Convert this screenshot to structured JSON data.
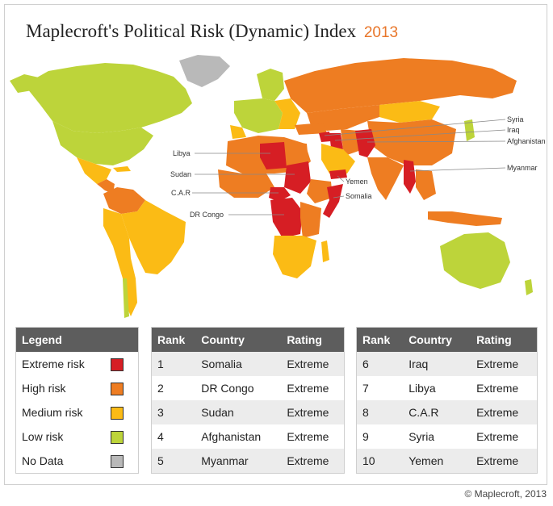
{
  "title": {
    "main": "Maplecroft's Political Risk (Dynamic) Index",
    "year": "2013"
  },
  "colors": {
    "extreme": "#d61e24",
    "high": "#ee7d22",
    "medium": "#fbbb15",
    "low": "#bdd43a",
    "nodata": "#b9b9b9"
  },
  "map_labels": {
    "libya": "Libya",
    "sudan": "Sudan",
    "car": "C.A.R",
    "drcongo": "DR Congo",
    "yemen": "Yemen",
    "somalia": "Somalia",
    "syria": "Syria",
    "iraq": "Iraq",
    "afghanistan": "Afghanistan",
    "myanmar": "Myanmar"
  },
  "legend": {
    "header": "Legend",
    "items": [
      {
        "label": "Extreme risk",
        "color": "#d61e24"
      },
      {
        "label": "High risk",
        "color": "#ee7d22"
      },
      {
        "label": "Medium risk",
        "color": "#fbbb15"
      },
      {
        "label": "Low risk",
        "color": "#bdd43a"
      },
      {
        "label": "No Data",
        "color": "#b9b9b9"
      }
    ]
  },
  "ranking": {
    "headers": {
      "rank": "Rank",
      "country": "Country",
      "rating": "Rating"
    },
    "rows": [
      {
        "rank": "1",
        "country": "Somalia",
        "rating": "Extreme"
      },
      {
        "rank": "2",
        "country": "DR Congo",
        "rating": "Extreme"
      },
      {
        "rank": "3",
        "country": "Sudan",
        "rating": "Extreme"
      },
      {
        "rank": "4",
        "country": "Afghanistan",
        "rating": "Extreme"
      },
      {
        "rank": "5",
        "country": "Myanmar",
        "rating": "Extreme"
      },
      {
        "rank": "6",
        "country": "Iraq",
        "rating": "Extreme"
      },
      {
        "rank": "7",
        "country": "Libya",
        "rating": "Extreme"
      },
      {
        "rank": "8",
        "country": "C.A.R",
        "rating": "Extreme"
      },
      {
        "rank": "9",
        "country": "Syria",
        "rating": "Extreme"
      },
      {
        "rank": "10",
        "country": "Yemen",
        "rating": "Extreme"
      }
    ]
  },
  "copyright": "© Maplecroft,  2013"
}
